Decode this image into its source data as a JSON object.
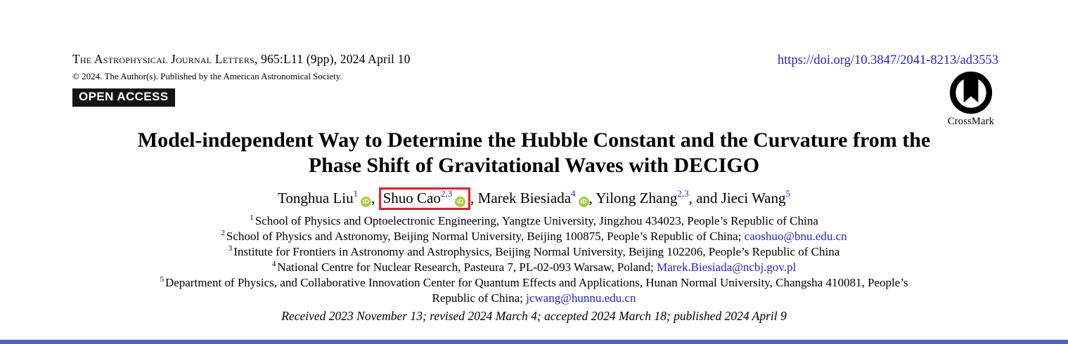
{
  "journal": {
    "name": "The Astrophysical Journal Letters",
    "citation": ", 965:L11 (9pp), 2024 April 10",
    "copyright": "© 2024. The Author(s). Published by the American Astronomical Society.",
    "open_access_label": "OPEN ACCESS",
    "doi_url": "https://doi.org/10.3847/2041-8213/ad3553",
    "crossmark_label": "CrossMark"
  },
  "title": {
    "line1": "Model-independent Way to Determine the Hubble Constant and the Curvature from the",
    "line2": "Phase Shift of Gravitational Waves with DECIGO"
  },
  "authors": [
    {
      "name": "Tonghua Liu",
      "sup": "1",
      "orcid": true,
      "highlighted": false,
      "sep": ", "
    },
    {
      "name": "Shuo Cao",
      "sup": "2,3",
      "orcid": true,
      "highlighted": true,
      "sep": ", "
    },
    {
      "name": "Marek Biesiada",
      "sup": "4",
      "orcid": true,
      "highlighted": false,
      "sep": ", "
    },
    {
      "name": "Yilong Zhang",
      "sup": "2,3",
      "orcid": false,
      "highlighted": false,
      "sep": ", and "
    },
    {
      "name": "Jieci Wang",
      "sup": "5",
      "orcid": false,
      "highlighted": false,
      "sep": ""
    }
  ],
  "affiliations": [
    {
      "sup": "1",
      "text": "School of Physics and Optoelectronic Engineering, Yangtze University, Jingzhou 434023, People’s Republic of China",
      "email": ""
    },
    {
      "sup": "2",
      "text": "School of Physics and Astronomy, Beijing Normal University, Beijing 100875, People’s Republic of China; ",
      "email": "caoshuo@bnu.edu.cn"
    },
    {
      "sup": "3",
      "text": "Institute for Frontiers in Astronomy and Astrophysics, Beijing Normal University, Beijing 102206, People’s Republic of China",
      "email": ""
    },
    {
      "sup": "4",
      "text": "National Centre for Nuclear Research, Pasteura 7, PL-02-093 Warsaw, Poland; ",
      "email": "Marek.Biesiada@ncbj.gov.pl"
    },
    {
      "sup": "5",
      "text": "Department of Physics, and Collaborative Innovation Center for Quantum Effects and Applications, Hunan Normal University, Changsha 410081, People’s",
      "email": ""
    },
    {
      "sup": "",
      "text": "Republic of China; ",
      "email": "jcwang@hunnu.edu.cn"
    }
  ],
  "history": "Received 2023 November 13; revised 2024 March 4; accepted 2024 March 18; published 2024 April 9",
  "icons": {
    "orcid_text": "iD"
  },
  "colors": {
    "link_blue": "#2323dd",
    "orcid_green": "#a6ce39",
    "highlight_red": "#ed1c24",
    "badge_black": "#141414",
    "bottom_bar_blue": "#4a66c8"
  }
}
